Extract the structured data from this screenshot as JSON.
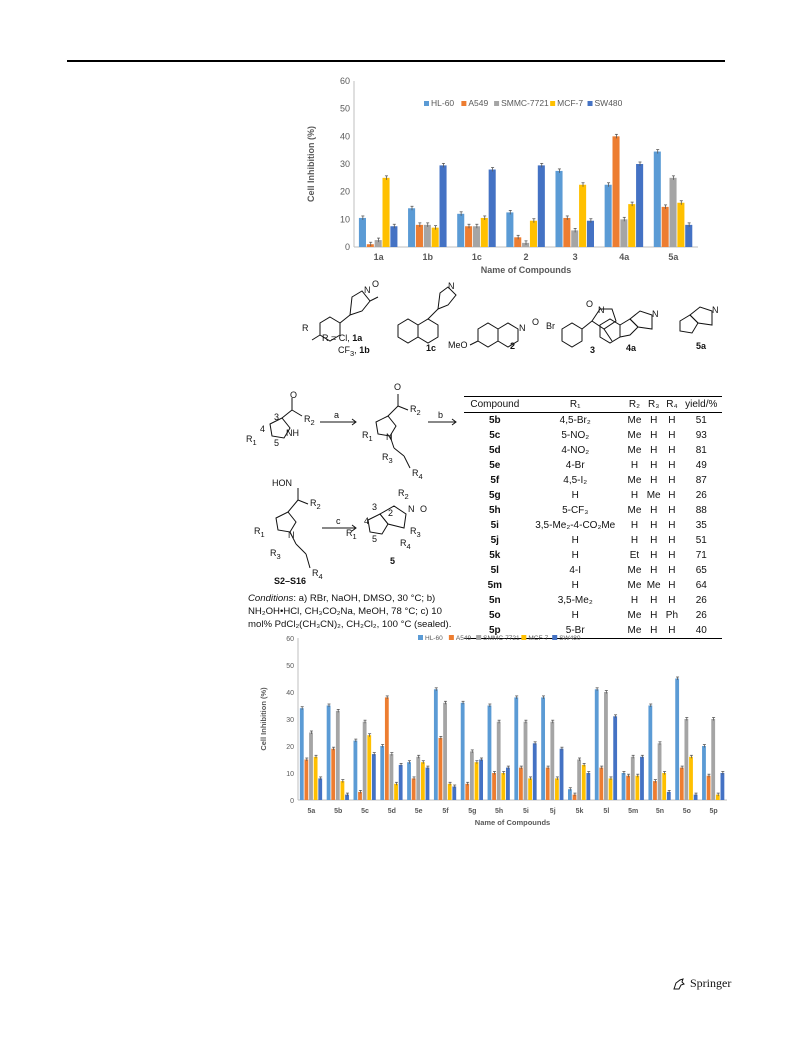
{
  "chart_data": [
    {
      "type": "bar",
      "xlabel": "Name of Compounds",
      "ylabel": "Cell Inhibition (%)",
      "ylim": [
        0,
        60
      ],
      "yticks": [
        0,
        10,
        20,
        30,
        40,
        50,
        60
      ],
      "grid": false,
      "legend_position": "top",
      "categories": [
        "1a",
        "1b",
        "1c",
        "2",
        "3",
        "4a",
        "5a"
      ],
      "series": [
        {
          "name": "HL-60",
          "color": "#5b9bd5",
          "values": [
            10.5,
            14,
            12,
            12.5,
            27.5,
            22.5,
            34.5
          ]
        },
        {
          "name": "A549",
          "color": "#ed7d31",
          "values": [
            1,
            8,
            7.5,
            3.5,
            10.5,
            40,
            14.5
          ]
        },
        {
          "name": "SMMC-7721",
          "color": "#a5a5a5",
          "values": [
            2.5,
            8,
            7.5,
            1.5,
            6,
            10,
            25
          ]
        },
        {
          "name": "MCF-7",
          "color": "#ffc000",
          "values": [
            25,
            7,
            10.5,
            9.5,
            22.5,
            15.5,
            16
          ]
        },
        {
          "name": "SW480",
          "color": "#4472c4",
          "values": [
            7.5,
            29.5,
            28,
            29.5,
            9.5,
            30,
            8
          ]
        }
      ]
    },
    {
      "type": "bar",
      "xlabel": "Name of Compounds",
      "ylabel": "Cell Inhibition (%)",
      "ylim": [
        0,
        60
      ],
      "yticks": [
        0,
        10,
        20,
        30,
        40,
        50,
        60
      ],
      "grid": false,
      "legend_position": "top",
      "categories": [
        "5a",
        "5b",
        "5c",
        "5d",
        "5e",
        "5f",
        "5g",
        "5h",
        "5i",
        "5j",
        "5k",
        "5l",
        "5m",
        "5n",
        "5o",
        "5p"
      ],
      "series": [
        {
          "name": "HL-60",
          "color": "#5b9bd5",
          "values": [
            34,
            35,
            22,
            20,
            14,
            41,
            36,
            35,
            38,
            38,
            4,
            41,
            10,
            35,
            45,
            20
          ]
        },
        {
          "name": "A549",
          "color": "#ed7d31",
          "values": [
            15,
            19,
            3,
            38,
            8,
            23,
            6,
            10,
            12,
            12,
            2,
            12,
            9,
            7,
            12,
            9
          ]
        },
        {
          "name": "SMMC-7721",
          "color": "#a5a5a5",
          "values": [
            25,
            33,
            29,
            17,
            16,
            36,
            18,
            29,
            29,
            29,
            15,
            40,
            16,
            21,
            30,
            30
          ]
        },
        {
          "name": "MCF-7",
          "color": "#ffc000",
          "values": [
            16,
            7,
            24,
            6,
            14,
            6,
            14,
            10,
            8,
            8,
            13,
            8,
            9,
            10,
            16,
            2
          ]
        },
        {
          "name": "SW480",
          "color": "#4472c4",
          "values": [
            8,
            2,
            17,
            13,
            12,
            5,
            15,
            12,
            21,
            19,
            10,
            31,
            16,
            3,
            2,
            10
          ]
        }
      ]
    }
  ],
  "structures": {
    "r_label": "R",
    "r_caption_1": "R = Cl, ",
    "r_caption_1_bold": "1a",
    "r_caption_2": "CF",
    "r_caption_2_sub": "3",
    "r_caption_2b": ", ",
    "r_caption_2_bold": "1b",
    "n_oxide": "N",
    "o_minus": "O",
    "meo": "MeO",
    "br": "Br",
    "labels": [
      "1c",
      "2",
      "3",
      "4a",
      "5a"
    ]
  },
  "scheme": {
    "step_a": "a",
    "step_b": "b",
    "step_c": "c",
    "num_3": "3",
    "num_4": "4",
    "num_5": "5",
    "num_2": "2",
    "r1": "R",
    "r1_sub": "1",
    "r2": "R",
    "r2_sub": "2",
    "r3": "R",
    "r3_sub": "3",
    "r4": "R",
    "r4_sub": "4",
    "nh": "NH",
    "n": "N",
    "o": "O",
    "hon": "HO",
    "product_label": "5",
    "intermediate_label": "S2–S16",
    "conditions_italic": "Conditions",
    "conditions_text": ": a) RBr, NaOH, DMSO, 30 °C; b) NH₂OH•HCl, CH₃CO₂Na, MeOH, 78 °C; c) 10 mol% PdCl₂(CH₃CN)₂, CH₂Cl₂, 100 °C (sealed)."
  },
  "yield_table": {
    "headers": [
      "Compound",
      "R₁",
      "R₂",
      "R₃",
      "R₄",
      "yield/%"
    ],
    "rows": [
      [
        "5b",
        "4,5-Br₂",
        "Me",
        "H",
        "H",
        "51"
      ],
      [
        "5c",
        "5-NO₂",
        "Me",
        "H",
        "H",
        "93"
      ],
      [
        "5d",
        "4-NO₂",
        "Me",
        "H",
        "H",
        "81"
      ],
      [
        "5e",
        "4-Br",
        "H",
        "H",
        "H",
        "49"
      ],
      [
        "5f",
        "4,5-I₂",
        "Me",
        "H",
        "H",
        "87"
      ],
      [
        "5g",
        "H",
        "H",
        "Me",
        "H",
        "26"
      ],
      [
        "5h",
        "5-CF₃",
        "Me",
        "H",
        "H",
        "88"
      ],
      [
        "5i",
        "3,5-Me₂-4-CO₂Me",
        "H",
        "H",
        "H",
        "35"
      ],
      [
        "5j",
        "H",
        "H",
        "H",
        "H",
        "51"
      ],
      [
        "5k",
        "H",
        "Et",
        "H",
        "H",
        "71"
      ],
      [
        "5l",
        "4-I",
        "Me",
        "H",
        "H",
        "65"
      ],
      [
        "5m",
        "H",
        "Me",
        "Me",
        "H",
        "64"
      ],
      [
        "5n",
        "3,5-Me₂",
        "H",
        "H",
        "H",
        "26"
      ],
      [
        "5o",
        "H",
        "Me",
        "H",
        "Ph",
        "26"
      ],
      [
        "5p",
        "5-Br",
        "Me",
        "H",
        "H",
        "40"
      ]
    ]
  },
  "footer": {
    "publisher": "Springer"
  }
}
